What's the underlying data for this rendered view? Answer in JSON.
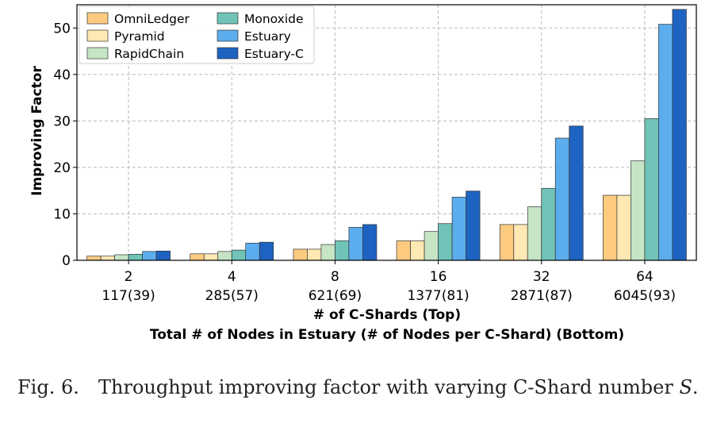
{
  "chart_data": {
    "type": "bar",
    "categories": [
      "2",
      "4",
      "8",
      "16",
      "32",
      "64"
    ],
    "categories_bottom": [
      "117(39)",
      "285(57)",
      "621(69)",
      "1377(81)",
      "2871(87)",
      "6045(93)"
    ],
    "xlabel": "# of C-Shards (Top)",
    "xlabel2": "Total # of Nodes in Estuary (# of Nodes per C-Shard) (Bottom)",
    "ylabel": "Improving Factor",
    "ylim": [
      0,
      55
    ],
    "yticks": [
      0,
      10,
      20,
      30,
      40,
      50
    ],
    "grid": true,
    "legend_position": "top-left",
    "series": [
      {
        "name": "OmniLedger",
        "color": "#FDCB80",
        "values": [
          0.9,
          1.4,
          2.4,
          4.2,
          7.7,
          14.0
        ]
      },
      {
        "name": "Pyramid",
        "color": "#FEE8B3",
        "values": [
          0.9,
          1.4,
          2.4,
          4.2,
          7.7,
          14.0
        ]
      },
      {
        "name": "RapidChain",
        "color": "#C6E5C5",
        "values": [
          1.2,
          1.9,
          3.4,
          6.2,
          11.5,
          21.4
        ]
      },
      {
        "name": "Monoxide",
        "color": "#6FC3B7",
        "values": [
          1.3,
          2.2,
          4.2,
          7.9,
          15.5,
          30.5
        ]
      },
      {
        "name": "Estuary",
        "color": "#5BADEE",
        "values": [
          1.9,
          3.7,
          7.1,
          13.6,
          26.3,
          50.8
        ]
      },
      {
        "name": "Estuary-C",
        "color": "#1E63C1",
        "values": [
          2.0,
          3.9,
          7.7,
          14.9,
          28.9,
          54.0
        ]
      }
    ]
  },
  "caption": {
    "label": "Fig. 6.",
    "text": "Throughput improving factor with varying C-Shard number ",
    "symbol": "S",
    "end": "."
  }
}
